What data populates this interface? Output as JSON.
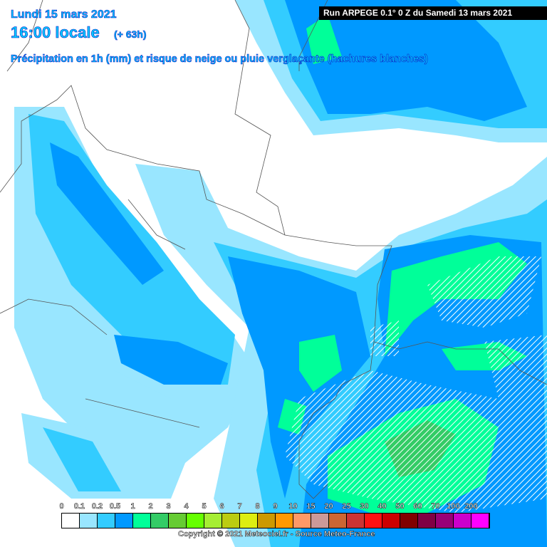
{
  "header": {
    "date": "Lundi 15 mars 2021",
    "time": "16:00 locale",
    "lead": "(+ 63h)",
    "description": "Précipitation en 1h (mm) et risque de neige ou pluie verglaçante (hachures blanches)",
    "run": "Run ARPEGE 0.1° 0 Z du Samedi 13 mars 2021"
  },
  "legend": {
    "labels": [
      "0",
      "0.1",
      "0.2",
      "0.5",
      "1",
      "2",
      "3",
      "4",
      "5",
      "6",
      "7",
      "8",
      "9",
      "10",
      "15",
      "20",
      "25",
      "30",
      "40",
      "50",
      "60",
      "70",
      "100",
      "200"
    ],
    "colors": [
      "#ffffff",
      "#99e6ff",
      "#33ccff",
      "#0099ff",
      "#00ff99",
      "#33cc66",
      "#66cc33",
      "#66ff00",
      "#a6ee33",
      "#bbcc11",
      "#ddee11",
      "#cc9900",
      "#ff9900",
      "#ff9966",
      "#cc9999",
      "#cc6633",
      "#cc3333",
      "#ff1111",
      "#cc0000",
      "#800000",
      "#800044",
      "#990077",
      "#cc00cc",
      "#ff00ff"
    ]
  },
  "copyright": "Copyright © 2021 Meteociel.fr - Source Meteo-France"
}
